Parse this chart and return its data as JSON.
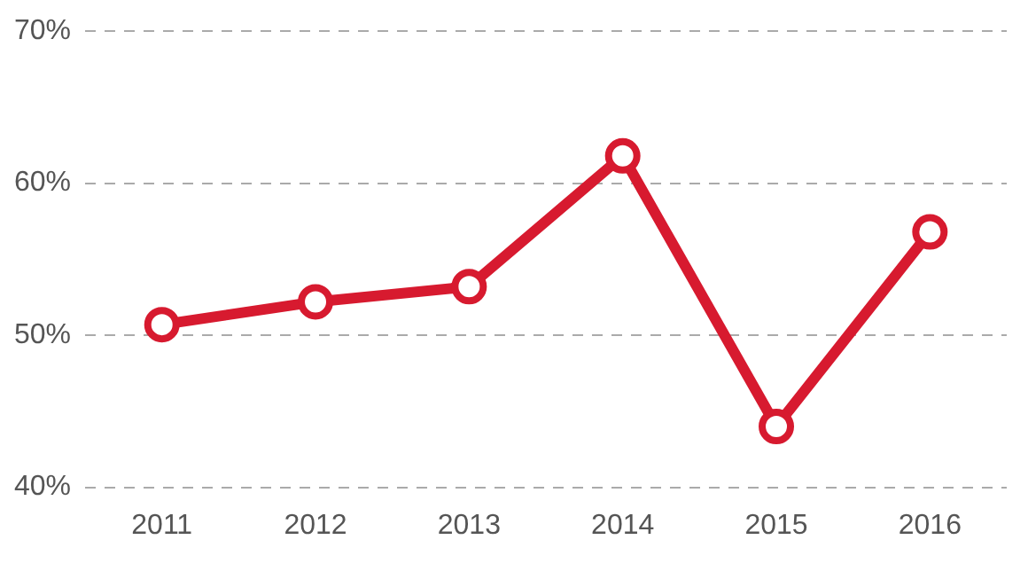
{
  "chart_data": {
    "type": "line",
    "categories": [
      "2011",
      "2012",
      "2013",
      "2014",
      "2015",
      "2016"
    ],
    "series": [
      {
        "color": "#d71a2f",
        "values": [
          50.7,
          52.2,
          53.2,
          61.8,
          44.0,
          56.8
        ]
      }
    ],
    "ylim": [
      40,
      70
    ],
    "yticks": [
      {
        "value": 40,
        "label": "40%"
      },
      {
        "value": 50,
        "label": "50%"
      },
      {
        "value": 60,
        "label": "60%"
      },
      {
        "value": 70,
        "label": "70%"
      }
    ],
    "grid": "y",
    "legend": false,
    "marker": "circle",
    "line_style": "solid"
  }
}
